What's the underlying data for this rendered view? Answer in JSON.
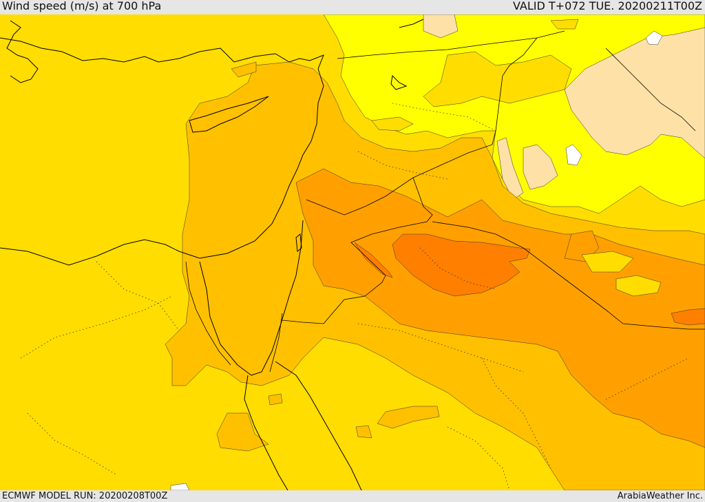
{
  "header": {
    "title": "Wind speed (m/s) at 700 hPa",
    "valid": "VALID T+072 TUE. 20200211T00Z"
  },
  "footer": {
    "model_run": "ECMWF MODEL RUN: 20200208T00Z",
    "credit": "ArabiaWeather Inc."
  },
  "map": {
    "parameter": "wind speed",
    "level": "700 hPa",
    "unit": "m/s",
    "colors": {
      "band_lowest": "#ffffff",
      "band_1": "#fde1a6",
      "band_2": "#ffff00",
      "band_3": "#ffdd00",
      "band_4": "#ffc000",
      "band_5": "#ffa000",
      "band_6": "#ff7f00",
      "coastline": "#000000"
    }
  }
}
